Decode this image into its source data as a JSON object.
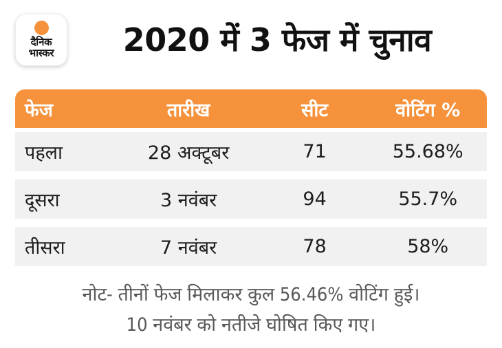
{
  "logo": {
    "line1": "दैनिक",
    "line2": "भास्कर",
    "sun_icon": "orange-circle"
  },
  "title": "2020 में 3 फेज में चुनाव",
  "chart_data": {
    "type": "table",
    "title": "2020 में 3 फेज में चुनाव",
    "columns": [
      "फेज",
      "तारीख",
      "सीट",
      "वोटिंग %"
    ],
    "rows": [
      [
        "पहला",
        "28 अक्टूबर",
        "71",
        "55.68%"
      ],
      [
        "दूसरा",
        "3 नवंबर",
        "94",
        "55.7%"
      ],
      [
        "तीसरा",
        "7 नवंबर",
        "78",
        "58%"
      ]
    ],
    "notes": [
      "नोट- तीनों फेज मिलाकर कुल 56.46% वोटिंग हुई।",
      "10 नवंबर को नतीजे घोषित किए गए।"
    ],
    "total_voting_percent": "56.46%",
    "result_date": "10 नवंबर"
  },
  "colors": {
    "accent_orange": "#F6923C",
    "row_bg": "#F1F1F2",
    "note_gray": "#58585A",
    "title_black": "#111111",
    "header_text": "#FFFFFF"
  }
}
